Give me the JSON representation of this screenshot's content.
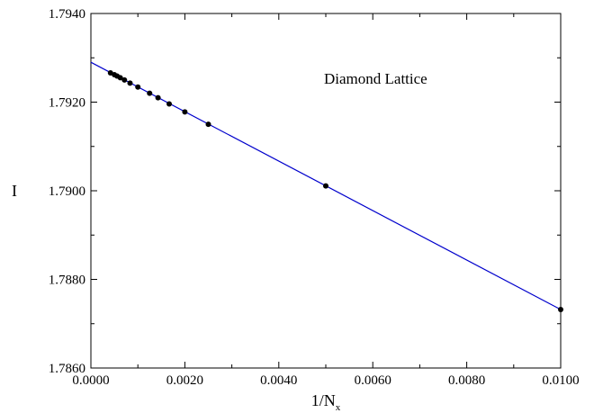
{
  "chart_data": {
    "type": "line",
    "title": "",
    "xlabel": "1/N",
    "xlabel_subscript": "x",
    "ylabel": "I",
    "xlim": [
      0.0,
      0.01
    ],
    "ylim": [
      1.786,
      1.794
    ],
    "x_ticks": [
      "0.0000",
      "0.0020",
      "0.0040",
      "0.0060",
      "0.0080",
      "0.0100"
    ],
    "y_ticks": [
      "1.7860",
      "1.7880",
      "1.7900",
      "1.7920",
      "1.7940"
    ],
    "grid": false,
    "annotation": "Diamond Lattice",
    "series": [
      {
        "style": "line",
        "color": "#0000cc",
        "x": [
          0.0,
          0.01
        ],
        "y": [
          1.7929,
          1.78732
        ]
      },
      {
        "style": "markers",
        "color": "#000000",
        "x": [
          0.000417,
          0.0005,
          0.000556,
          0.000625,
          0.000714,
          0.000833,
          0.001,
          0.00125,
          0.001429,
          0.001667,
          0.002,
          0.0025,
          0.005,
          0.01
        ],
        "y": [
          1.79266,
          1.79262,
          1.79259,
          1.79255,
          1.7925,
          1.79243,
          1.79234,
          1.7922,
          1.7921,
          1.79196,
          1.79178,
          1.7915,
          1.79011,
          1.78732
        ]
      }
    ]
  }
}
